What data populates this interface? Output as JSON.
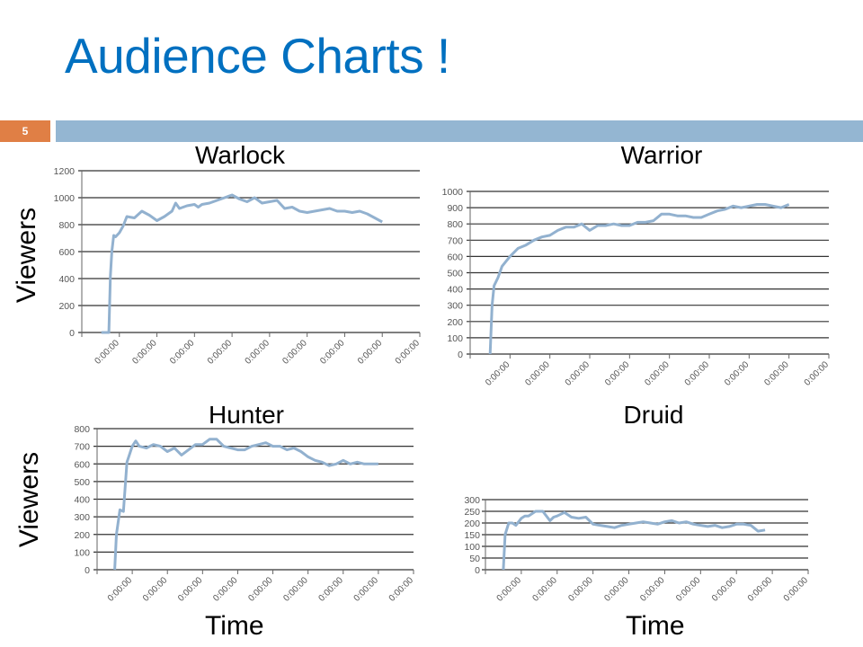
{
  "slide": {
    "title": "Audience Charts !",
    "number": "5",
    "colors": {
      "title": "#0070c0",
      "slide_number_bg": "#e07f45",
      "header_bar": "#94b6d2",
      "series": "#92b1cf",
      "grid": "#333333"
    }
  },
  "labels": {
    "viewers_top": "Viewers",
    "viewers_bottom": "Viewers",
    "time_left": "Time",
    "time_right": "Time"
  },
  "chart_data": [
    {
      "type": "line",
      "title": "Warlock",
      "xlabel": "",
      "ylabel": "Viewers",
      "ylim": [
        0,
        1200
      ],
      "yticks": [
        0,
        200,
        400,
        600,
        800,
        1000,
        1200
      ],
      "x_tick_labels": [
        "0:00:00",
        "0:00:00",
        "0:00:00",
        "0:00:00",
        "0:00:00",
        "0:00:00",
        "0:00:00",
        "0:00:00",
        "0:00:00"
      ],
      "grid": true,
      "legend": "none",
      "x": [
        0.52,
        0.72,
        0.76,
        0.8,
        0.85,
        0.9,
        1.0,
        1.1,
        1.2,
        1.4,
        1.6,
        1.8,
        2.0,
        2.2,
        2.4,
        2.5,
        2.6,
        2.8,
        3.0,
        3.1,
        3.2,
        3.4,
        3.6,
        3.8,
        4.0,
        4.2,
        4.4,
        4.6,
        4.8,
        5.0,
        5.2,
        5.4,
        5.6,
        5.8,
        6.0,
        6.2,
        6.4,
        6.6,
        6.8,
        7.0,
        7.2,
        7.4,
        7.6,
        7.8,
        8.0
      ],
      "values": [
        0,
        0,
        420,
        600,
        720,
        710,
        740,
        790,
        860,
        850,
        900,
        870,
        830,
        860,
        900,
        960,
        920,
        940,
        950,
        930,
        950,
        960,
        980,
        1000,
        1020,
        990,
        970,
        1000,
        960,
        970,
        980,
        920,
        930,
        900,
        890,
        900,
        910,
        920,
        900,
        900,
        890,
        900,
        880,
        850,
        820
      ]
    },
    {
      "type": "line",
      "title": "Warrior",
      "xlabel": "",
      "ylabel": "",
      "ylim": [
        0,
        1000
      ],
      "yticks": [
        0,
        100,
        200,
        300,
        400,
        500,
        600,
        700,
        800,
        900,
        1000
      ],
      "x_tick_labels": [
        "0:00:00",
        "0:00:00",
        "0:00:00",
        "0:00:00",
        "0:00:00",
        "0:00:00",
        "0:00:00",
        "0:00:00",
        "0:00:00"
      ],
      "grid": true,
      "legend": "none",
      "x": [
        0.5,
        0.55,
        0.6,
        0.7,
        0.8,
        0.9,
        1.0,
        1.2,
        1.4,
        1.6,
        1.8,
        2.0,
        2.2,
        2.4,
        2.6,
        2.8,
        3.0,
        3.2,
        3.4,
        3.6,
        3.8,
        4.0,
        4.2,
        4.4,
        4.6,
        4.8,
        5.0,
        5.2,
        5.4,
        5.6,
        5.8,
        6.0,
        6.2,
        6.4,
        6.6,
        6.8,
        7.0,
        7.2,
        7.4,
        7.6,
        7.8,
        8.0
      ],
      "values": [
        0,
        300,
        420,
        470,
        540,
        570,
        600,
        650,
        670,
        700,
        720,
        730,
        760,
        780,
        780,
        800,
        760,
        790,
        790,
        800,
        790,
        790,
        810,
        810,
        820,
        860,
        860,
        850,
        850,
        840,
        840,
        860,
        880,
        890,
        910,
        900,
        910,
        920,
        920,
        910,
        900,
        920
      ]
    },
    {
      "type": "line",
      "title": "Hunter",
      "xlabel": "Time",
      "ylabel": "Viewers",
      "ylim": [
        0,
        800
      ],
      "yticks": [
        0,
        100,
        200,
        300,
        400,
        500,
        600,
        700,
        800
      ],
      "x_tick_labels": [
        "0:00:00",
        "0:00:00",
        "0:00:00",
        "0:00:00",
        "0:00:00",
        "0:00:00",
        "0:00:00",
        "0:00:00",
        "0:00:00"
      ],
      "grid": true,
      "legend": "none",
      "x": [
        0.5,
        0.55,
        0.65,
        0.75,
        0.85,
        0.9,
        1.0,
        1.1,
        1.2,
        1.4,
        1.6,
        1.8,
        2.0,
        2.2,
        2.4,
        2.6,
        2.8,
        3.0,
        3.2,
        3.4,
        3.6,
        3.8,
        4.0,
        4.2,
        4.4,
        4.6,
        4.8,
        5.0,
        5.2,
        5.4,
        5.6,
        5.8,
        6.0,
        6.2,
        6.4,
        6.6,
        6.8,
        7.0,
        7.2,
        7.4,
        7.6,
        7.8,
        8.0
      ],
      "values": [
        0,
        200,
        340,
        330,
        610,
        640,
        700,
        730,
        700,
        690,
        710,
        700,
        670,
        690,
        650,
        680,
        710,
        710,
        740,
        740,
        700,
        690,
        680,
        680,
        700,
        710,
        720,
        700,
        700,
        680,
        690,
        670,
        640,
        620,
        610,
        590,
        600,
        620,
        600,
        610,
        600,
        600,
        600
      ]
    },
    {
      "type": "line",
      "title": "Druid",
      "xlabel": "Time",
      "ylabel": "",
      "ylim": [
        0,
        300
      ],
      "yticks": [
        0,
        50,
        100,
        150,
        200,
        250,
        300
      ],
      "x_tick_labels": [
        "0:00:00",
        "0:00:00",
        "0:00:00",
        "0:00:00",
        "0:00:00",
        "0:00:00",
        "0:00:00",
        "0:00:00",
        "0:00:00"
      ],
      "grid": true,
      "legend": "none",
      "x": [
        0.5,
        0.55,
        0.65,
        0.75,
        0.85,
        1.0,
        1.1,
        1.2,
        1.4,
        1.6,
        1.8,
        1.9,
        2.0,
        2.2,
        2.4,
        2.6,
        2.8,
        3.0,
        3.2,
        3.4,
        3.6,
        3.8,
        4.0,
        4.2,
        4.4,
        4.6,
        4.8,
        5.0,
        5.2,
        5.4,
        5.6,
        5.8,
        6.0,
        6.2,
        6.4,
        6.6,
        6.8,
        7.0,
        7.2,
        7.4,
        7.6,
        7.8
      ],
      "values": [
        0,
        150,
        200,
        200,
        190,
        220,
        230,
        230,
        250,
        250,
        210,
        225,
        230,
        245,
        225,
        220,
        225,
        195,
        190,
        185,
        180,
        190,
        195,
        200,
        205,
        200,
        195,
        205,
        210,
        200,
        205,
        195,
        190,
        185,
        190,
        180,
        185,
        195,
        195,
        190,
        165,
        170
      ]
    }
  ]
}
